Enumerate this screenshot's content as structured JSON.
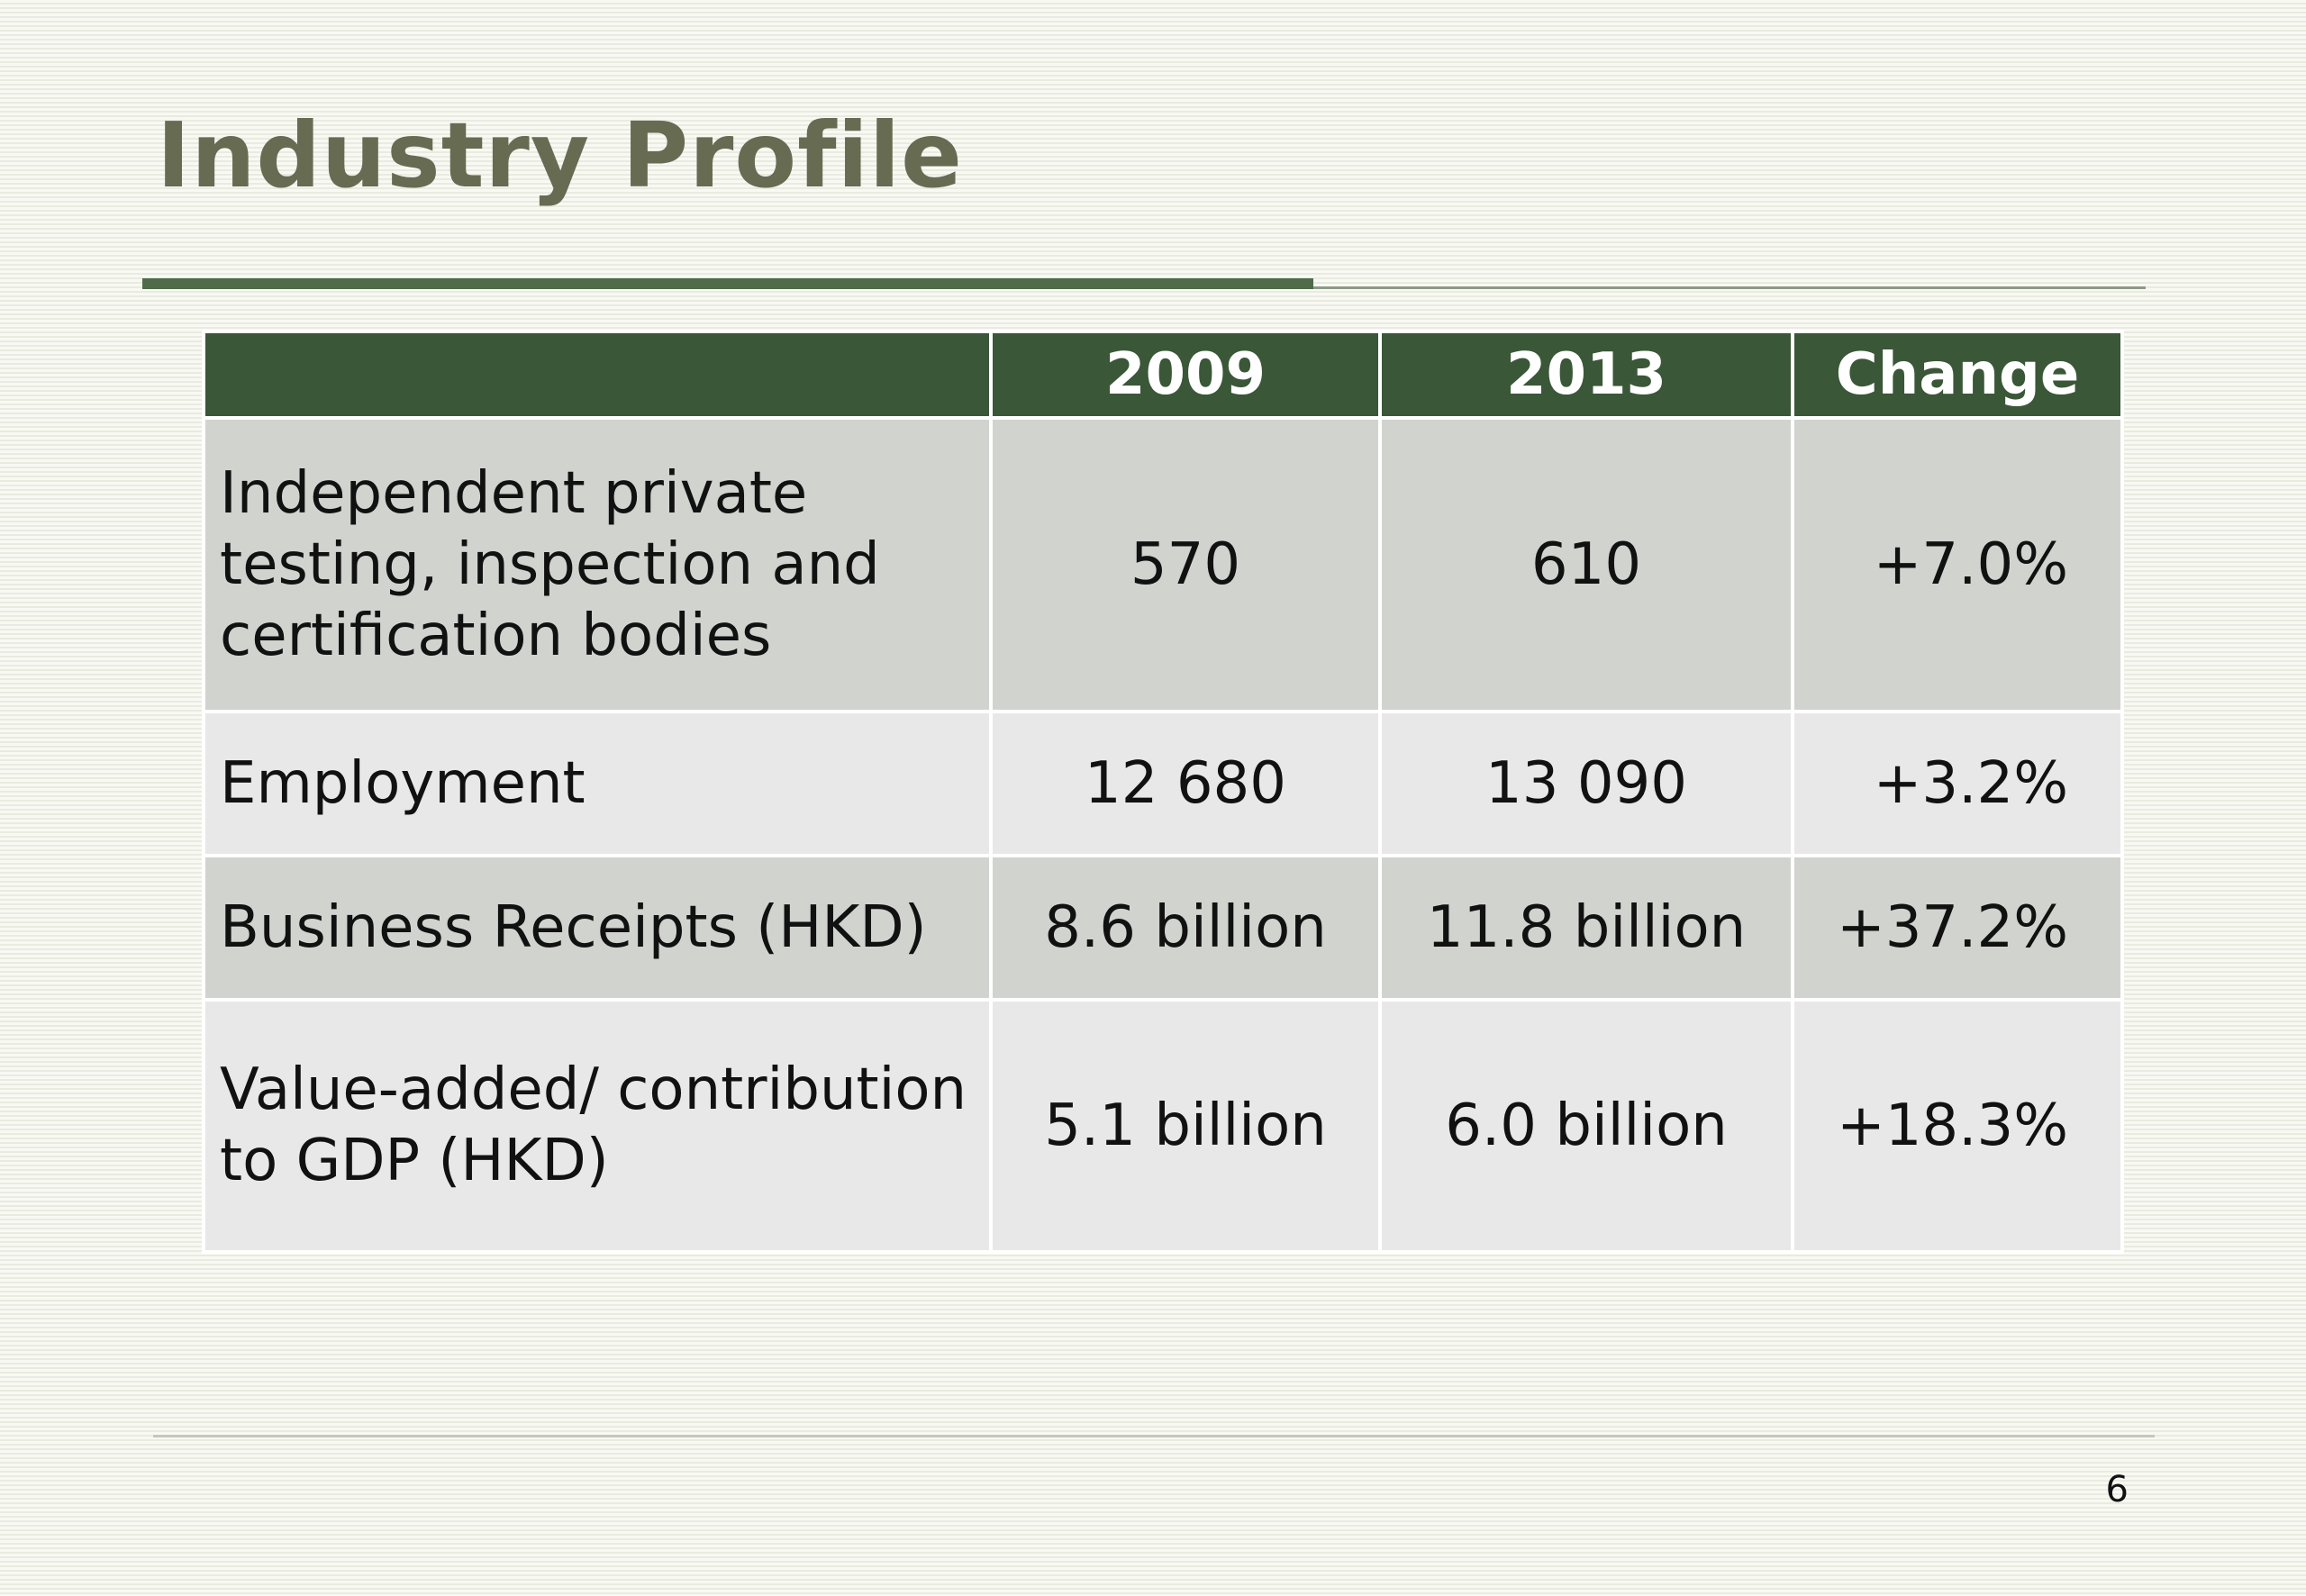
{
  "slide": {
    "title": "Industry Profile",
    "page_number": "6"
  },
  "table": {
    "headers": [
      "",
      "2009",
      "2013",
      "Change"
    ],
    "rows": [
      {
        "label": "Independent private testing, inspection and certification bodies",
        "v2009": "570",
        "v2013": "610",
        "change": "+7.0%"
      },
      {
        "label": "Employment",
        "v2009": "12 680",
        "v2013": "13 090",
        "change": "+3.2%"
      },
      {
        "label": "Business Receipts (HKD)",
        "v2009": "8.6 billion",
        "v2013": "11.8 billion",
        "change": "+37.2%"
      },
      {
        "label": "Value-added/ contribution to GDP (HKD)",
        "v2009": "5.1 billion",
        "v2013": "6.0 billion",
        "change": "+18.3%"
      }
    ]
  },
  "colors": {
    "title": "#676b52",
    "header_fill": "#3a5738",
    "header_text": "#ffffff",
    "row_fill_odd": "#d1d3cf",
    "row_fill_even": "#e8e8e8",
    "accent_rule": "#4f6b49"
  }
}
